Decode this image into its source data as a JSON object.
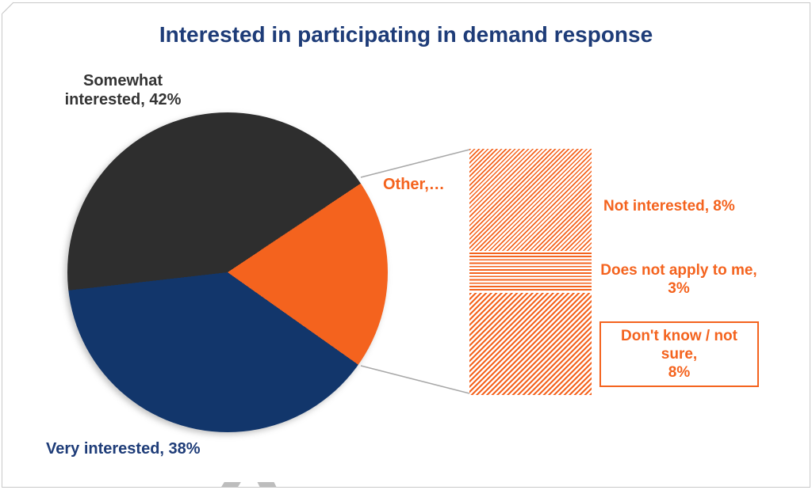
{
  "title": {
    "text": "Interested in participating in demand response",
    "color": "#1e3c78"
  },
  "colors": {
    "somewhat_slice": "#2e2e2e",
    "very_slice": "#12366b",
    "other_slice": "#f4631e",
    "title_text": "#1e3c78",
    "orange_text": "#f4631e",
    "connector_line": "#a8a8a8",
    "border": "#c9c9c9"
  },
  "chart_data": {
    "type": "pie",
    "variant": "bar-of-pie",
    "title": "Interested in participating in demand response",
    "legend": "none",
    "start_angle_deg": 263.5,
    "slices": [
      {
        "label": "Somewhat interested",
        "value": 42,
        "color": "#2e2e2e",
        "data_label": "Somewhat\ninterested, 42%"
      },
      {
        "label": "Other",
        "value": 19,
        "color": "#f4631e",
        "data_label": "Other,…"
      },
      {
        "label": "Very interested",
        "value": 38,
        "color": "#12366b",
        "data_label": "Very interested, 38%"
      }
    ],
    "other_breakdown": {
      "total": 19,
      "segments": [
        {
          "label": "Not interested",
          "value": 8,
          "pattern": "diagonal-up-fine",
          "data_label": "Not interested, 8%",
          "boxed": false
        },
        {
          "label": "Does not apply to me",
          "value": 3,
          "pattern": "horizontal",
          "data_label": "Does not apply to me,\n3%",
          "boxed": false
        },
        {
          "label": "Don't know / not sure",
          "value": 8,
          "pattern": "diagonal-up-bold",
          "data_label": "Don't know  / not sure,\n8%",
          "boxed": true
        }
      ]
    }
  }
}
